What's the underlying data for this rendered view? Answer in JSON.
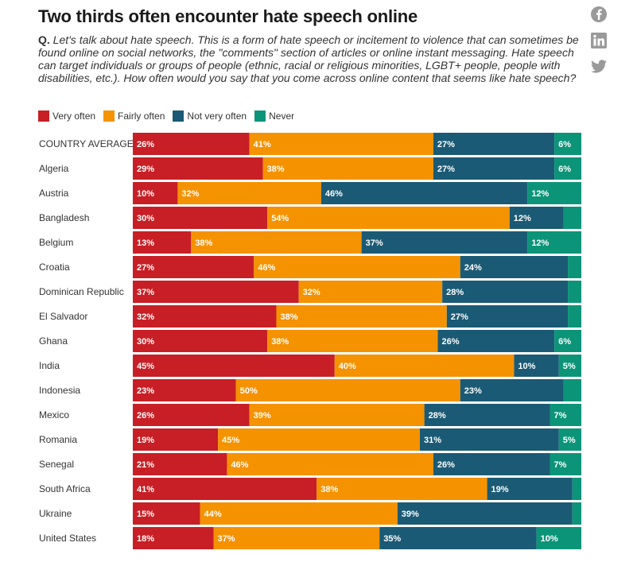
{
  "header": {
    "title": "Two thirds often encounter hate speech online",
    "question_prefix": "Q.",
    "question_text": "Let's talk about hate speech. This is a form of hate speech or incitement to violence that can sometimes be found online on social networks, the \"comments\" section of articles or online instant messaging. Hate speech can target individuals or groups of people (ethnic, racial or religious minorities, LGBT+ people, people with disabilities, etc.). How often would you say that you come across online content that seems like hate speech?"
  },
  "social": {
    "icons": [
      "facebook-icon",
      "linkedin-icon",
      "twitter-icon"
    ],
    "color": "#9a9a9a"
  },
  "chart_data": {
    "type": "bar",
    "orientation": "horizontal",
    "stacked": true,
    "title": "Two thirds often encounter hate speech online",
    "xlabel": "",
    "ylabel": "",
    "xlim": [
      0,
      100
    ],
    "legend_position": "top-left",
    "categories": [
      "COUNTRY AVERAGE",
      "Algeria",
      "Austria",
      "Bangladesh",
      "Belgium",
      "Croatia",
      "Dominican Republic",
      "El Salvador",
      "Ghana",
      "India",
      "Indonesia",
      "Mexico",
      "Romania",
      "Senegal",
      "South Africa",
      "Ukraine",
      "United States"
    ],
    "series": [
      {
        "name": "Very often",
        "color": "#c71f25",
        "values": [
          26,
          29,
          10,
          30,
          13,
          27,
          37,
          32,
          30,
          45,
          23,
          26,
          19,
          21,
          41,
          15,
          18
        ]
      },
      {
        "name": "Fairly often",
        "color": "#f59200",
        "values": [
          41,
          38,
          32,
          54,
          38,
          46,
          32,
          38,
          38,
          40,
          50,
          39,
          45,
          46,
          38,
          44,
          37
        ]
      },
      {
        "name": "Not very often",
        "color": "#1b5a74",
        "values": [
          27,
          27,
          46,
          12,
          37,
          24,
          28,
          27,
          26,
          10,
          23,
          28,
          31,
          26,
          19,
          39,
          35
        ]
      },
      {
        "name": "Never",
        "color": "#0c9479",
        "values": [
          6,
          6,
          12,
          4,
          12,
          3,
          3,
          3,
          6,
          5,
          4,
          7,
          5,
          7,
          2,
          2,
          10
        ]
      }
    ],
    "labels": [
      [
        "26%",
        "29%",
        "10%",
        "30%",
        "13%",
        "27%",
        "37%",
        "32%",
        "30%",
        "45%",
        "23%",
        "26%",
        "19%",
        "21%",
        "41%",
        "15%",
        "18%"
      ],
      [
        "41%",
        "38%",
        "32%",
        "54%",
        "38%",
        "46%",
        "32%",
        "38%",
        "38%",
        "40%",
        "50%",
        "39%",
        "45%",
        "46%",
        "38%",
        "44%",
        "37%"
      ],
      [
        "27%",
        "27%",
        "46%",
        "12%",
        "37%",
        "24%",
        "28%",
        "27%",
        "26%",
        "10%",
        "23%",
        "28%",
        "31%",
        "26%",
        "19%",
        "39%",
        "35%"
      ],
      [
        "6%",
        "6%",
        "12%",
        "",
        "12%",
        "",
        "",
        "",
        "6%",
        "5%",
        "",
        "7%",
        "5%",
        "7%",
        "",
        "",
        "10%"
      ]
    ]
  }
}
